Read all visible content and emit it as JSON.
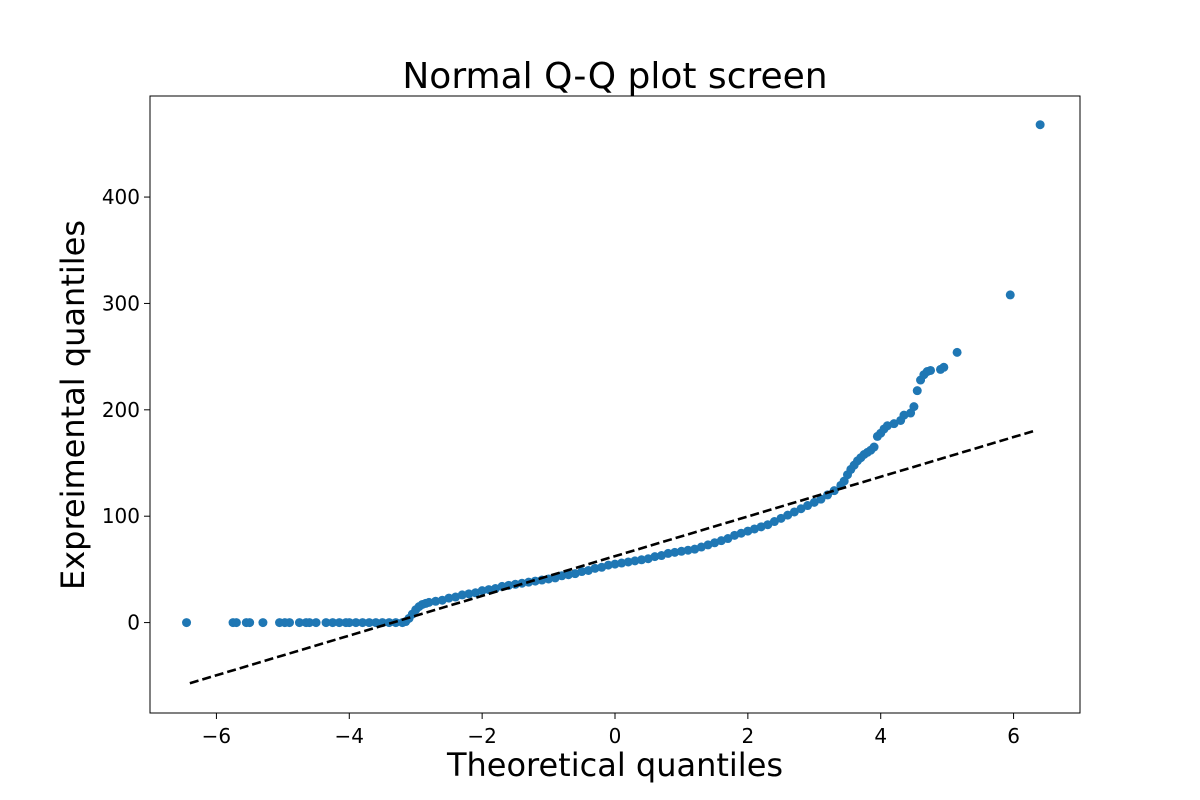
{
  "chart_data": {
    "type": "scatter",
    "title": "Normal Q-Q plot screen",
    "xlabel": "Theoretical quantiles",
    "ylabel": "Expreimental quantiles",
    "xlim": [
      -7,
      7
    ],
    "ylim": [
      -85,
      495
    ],
    "xticks": [
      -6,
      -4,
      -2,
      0,
      2,
      4,
      6
    ],
    "xtick_labels": [
      "−6",
      "−4",
      "−2",
      "0",
      "2",
      "4",
      "6"
    ],
    "yticks": [
      0,
      100,
      200,
      300,
      400
    ],
    "ytick_labels": [
      "0",
      "100",
      "200",
      "300",
      "400"
    ],
    "grid": false,
    "point_color": "#1f77b4",
    "reference_line": {
      "style": "dashed",
      "color": "#000000",
      "x": [
        -6.4,
        6.3
      ],
      "y": [
        -57,
        180
      ]
    },
    "series": [
      {
        "points": [
          [
            -6.45,
            0
          ],
          [
            -5.75,
            0
          ],
          [
            -5.7,
            0
          ],
          [
            -5.55,
            0
          ],
          [
            -5.5,
            0
          ],
          [
            -5.3,
            0
          ],
          [
            -5.05,
            0
          ],
          [
            -4.97,
            0
          ],
          [
            -4.9,
            0
          ],
          [
            -4.75,
            0
          ],
          [
            -4.65,
            0
          ],
          [
            -4.6,
            0
          ],
          [
            -4.5,
            0
          ],
          [
            -4.35,
            0
          ],
          [
            -4.25,
            0
          ],
          [
            -4.15,
            0
          ],
          [
            -4.05,
            0
          ],
          [
            -4.0,
            0
          ],
          [
            -3.9,
            0
          ],
          [
            -3.8,
            0
          ],
          [
            -3.7,
            0
          ],
          [
            -3.6,
            0
          ],
          [
            -3.5,
            0
          ],
          [
            -3.4,
            0
          ],
          [
            -3.3,
            0
          ],
          [
            -3.2,
            0
          ],
          [
            -3.15,
            1
          ],
          [
            -3.1,
            4
          ],
          [
            -3.05,
            8
          ],
          [
            -3.0,
            12
          ],
          [
            -2.95,
            15
          ],
          [
            -2.9,
            17
          ],
          [
            -2.85,
            18
          ],
          [
            -2.8,
            19
          ],
          [
            -2.7,
            20
          ],
          [
            -2.6,
            21
          ],
          [
            -2.5,
            23
          ],
          [
            -2.4,
            24
          ],
          [
            -2.3,
            26
          ],
          [
            -2.2,
            27
          ],
          [
            -2.1,
            28
          ],
          [
            -2.0,
            30
          ],
          [
            -1.9,
            31
          ],
          [
            -1.8,
            32
          ],
          [
            -1.7,
            34
          ],
          [
            -1.6,
            35
          ],
          [
            -1.5,
            36
          ],
          [
            -1.4,
            37
          ],
          [
            -1.3,
            38
          ],
          [
            -1.2,
            39
          ],
          [
            -1.1,
            40
          ],
          [
            -1.0,
            41
          ],
          [
            -0.9,
            42
          ],
          [
            -0.8,
            44
          ],
          [
            -0.7,
            45
          ],
          [
            -0.6,
            46
          ],
          [
            -0.5,
            48
          ],
          [
            -0.4,
            49
          ],
          [
            -0.3,
            51
          ],
          [
            -0.2,
            52
          ],
          [
            -0.1,
            54
          ],
          [
            0.0,
            55
          ],
          [
            0.1,
            56
          ],
          [
            0.2,
            57
          ],
          [
            0.3,
            58
          ],
          [
            0.4,
            59
          ],
          [
            0.5,
            60
          ],
          [
            0.6,
            62
          ],
          [
            0.7,
            63
          ],
          [
            0.8,
            65
          ],
          [
            0.9,
            66
          ],
          [
            1.0,
            67
          ],
          [
            1.1,
            68
          ],
          [
            1.2,
            69
          ],
          [
            1.3,
            71
          ],
          [
            1.4,
            73
          ],
          [
            1.5,
            75
          ],
          [
            1.6,
            77
          ],
          [
            1.7,
            79
          ],
          [
            1.8,
            82
          ],
          [
            1.9,
            84
          ],
          [
            2.0,
            86
          ],
          [
            2.1,
            88
          ],
          [
            2.2,
            90
          ],
          [
            2.3,
            92
          ],
          [
            2.4,
            95
          ],
          [
            2.5,
            98
          ],
          [
            2.6,
            101
          ],
          [
            2.7,
            104
          ],
          [
            2.8,
            107
          ],
          [
            2.9,
            110
          ],
          [
            3.0,
            113
          ],
          [
            3.1,
            116
          ],
          [
            3.2,
            120
          ],
          [
            3.3,
            124
          ],
          [
            3.4,
            129
          ],
          [
            3.45,
            133
          ],
          [
            3.5,
            139
          ],
          [
            3.55,
            144
          ],
          [
            3.6,
            148
          ],
          [
            3.65,
            152
          ],
          [
            3.7,
            155
          ],
          [
            3.75,
            158
          ],
          [
            3.8,
            160
          ],
          [
            3.85,
            162
          ],
          [
            3.9,
            165
          ],
          [
            3.95,
            175
          ],
          [
            4.0,
            178
          ],
          [
            4.05,
            182
          ],
          [
            4.1,
            185
          ],
          [
            4.2,
            187
          ],
          [
            4.3,
            190
          ],
          [
            4.35,
            195
          ],
          [
            4.45,
            197
          ],
          [
            4.5,
            203
          ],
          [
            4.55,
            218
          ],
          [
            4.6,
            228
          ],
          [
            4.65,
            233
          ],
          [
            4.7,
            236
          ],
          [
            4.75,
            237
          ],
          [
            4.9,
            238
          ],
          [
            4.95,
            240
          ],
          [
            5.15,
            254
          ],
          [
            5.95,
            308
          ],
          [
            6.4,
            468
          ]
        ]
      }
    ]
  }
}
